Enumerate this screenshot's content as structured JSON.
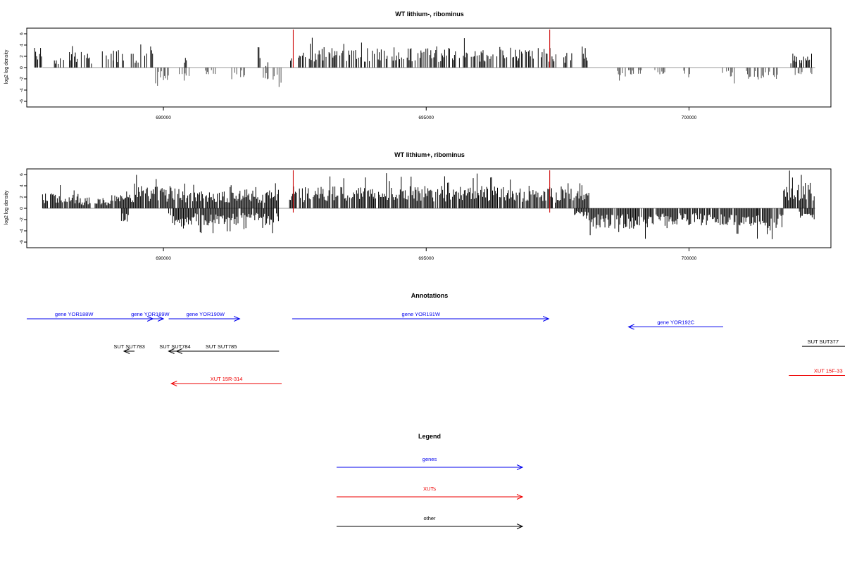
{
  "chart_data": [
    {
      "type": "bar",
      "title": "WT lithium-, ribominus",
      "ylabel": "log2 log density",
      "xlabel": "",
      "xlim": [
        687400,
        702700
      ],
      "ylim": [
        -7,
        7
      ],
      "x_ticks": [
        690000,
        695000,
        700000
      ],
      "x_tick_labels": [
        "690000",
        "695000",
        "700000"
      ],
      "y_ticks": [
        -6,
        -4,
        -2,
        0,
        2,
        4,
        6
      ],
      "y_tick_labels": [
        "-6",
        "-4",
        "-2",
        "0",
        "2",
        "4",
        "6"
      ],
      "baseline": {
        "x": [
          687700,
          702400
        ],
        "y": 0
      },
      "highlight_lines": [
        692470,
        697350
      ],
      "highlight_color": "#cc0000",
      "bar_color": "#000000",
      "neg_bar_color": "#555555",
      "coverage": {
        "positive": [
          [
            687550,
            687750,
            3.0
          ],
          [
            687850,
            688100,
            1.5
          ],
          [
            688100,
            688250,
            1.8
          ],
          [
            688250,
            688450,
            2.3
          ],
          [
            688500,
            688650,
            1.8
          ],
          [
            688800,
            689050,
            2.6
          ],
          [
            689050,
            689250,
            2.5
          ],
          [
            689350,
            689550,
            2.4
          ],
          [
            689550,
            689820,
            3.4
          ],
          [
            690400,
            690450,
            1.8
          ],
          [
            691800,
            691850,
            3.3
          ],
          [
            691950,
            692000,
            0.8
          ],
          [
            692050,
            692100,
            1.6
          ],
          [
            692400,
            692450,
            1.0
          ],
          [
            692550,
            692700,
            2.4
          ],
          [
            692700,
            694400,
            2.9
          ],
          [
            694400,
            694600,
            2.7
          ],
          [
            694600,
            696100,
            2.8
          ],
          [
            696100,
            697000,
            3.0
          ],
          [
            697000,
            697500,
            2.8
          ],
          [
            697600,
            697800,
            2.4
          ],
          [
            697950,
            698080,
            3.0
          ]
        ],
        "negative": [
          [
            689850,
            690200,
            -1.8
          ],
          [
            690300,
            690500,
            -1.5
          ],
          [
            690800,
            691000,
            -1.0
          ],
          [
            691300,
            691550,
            -1.4
          ],
          [
            691900,
            692250,
            -2.2
          ],
          [
            698600,
            698800,
            -1.4
          ],
          [
            698850,
            699100,
            -1.0
          ],
          [
            699350,
            699550,
            -1.0
          ],
          [
            699900,
            700100,
            -1.4
          ],
          [
            700600,
            700900,
            -1.5
          ],
          [
            701000,
            701400,
            -1.7
          ],
          [
            701400,
            701700,
            -1.6
          ],
          [
            702000,
            702200,
            -1.3
          ],
          [
            702300,
            702400,
            -1.3
          ]
        ],
        "tail_positive": [
          [
            701900,
            702400,
            2.0
          ]
        ]
      }
    },
    {
      "type": "bar",
      "title": "WT lithium+, ribominus",
      "ylabel": "log2 log density",
      "xlabel": "",
      "xlim": [
        687400,
        702700
      ],
      "ylim": [
        -7,
        7
      ],
      "x_ticks": [
        690000,
        695000,
        700000
      ],
      "x_tick_labels": [
        "690000",
        "695000",
        "700000"
      ],
      "y_ticks": [
        -6,
        -4,
        -2,
        0,
        2,
        4,
        6
      ],
      "y_tick_labels": [
        "-6",
        "-4",
        "-2",
        "0",
        "2",
        "4",
        "6"
      ],
      "baseline": {
        "x": [
          687700,
          702400
        ],
        "y": 0
      },
      "highlight_lines": [
        692470,
        697350
      ],
      "highlight_color": "#cc0000",
      "bar_color": "#000000",
      "neg_bar_color": "#000000",
      "coverage": {
        "positive": [
          [
            687700,
            688400,
            2.2
          ],
          [
            688400,
            689000,
            1.6
          ],
          [
            689000,
            689450,
            2.0
          ],
          [
            689450,
            690350,
            3.2
          ],
          [
            690350,
            691100,
            2.4
          ],
          [
            691100,
            692200,
            2.7
          ],
          [
            692400,
            694000,
            3.1
          ],
          [
            694000,
            696000,
            3.3
          ],
          [
            696000,
            697400,
            3.2
          ],
          [
            697400,
            698100,
            2.9
          ],
          [
            701800,
            702400,
            3.8
          ]
        ],
        "negative": [
          [
            689200,
            689350,
            -2.0
          ],
          [
            690100,
            691100,
            -2.6
          ],
          [
            691100,
            692200,
            -2.4
          ],
          [
            697800,
            698100,
            -1.2
          ],
          [
            698100,
            699300,
            -2.9
          ],
          [
            699300,
            701300,
            -2.5
          ],
          [
            701300,
            701800,
            -2.9
          ],
          [
            702100,
            702400,
            -1.6
          ]
        ]
      }
    }
  ],
  "annotations": {
    "title": "Annotations",
    "features": [
      {
        "label": "gene YOR188W",
        "type": "gene",
        "start": 687400,
        "end": 689800,
        "row": 0,
        "dir": "+",
        "label_x": 688300
      },
      {
        "label": "gene YOR189W",
        "type": "gene",
        "start": 689550,
        "end": 690000,
        "row": 0,
        "dir": "+",
        "label_x": 689750
      },
      {
        "label": "gene YOR190W",
        "type": "gene",
        "start": 690100,
        "end": 691450,
        "row": 0,
        "dir": "+",
        "label_x": 690800
      },
      {
        "label": "gene YOR191W",
        "type": "gene",
        "start": 692450,
        "end": 697330,
        "row": 0,
        "dir": "+",
        "label_x": 694900
      },
      {
        "label": "gene YOR192C",
        "type": "gene",
        "start": 698850,
        "end": 700650,
        "row": 0.25,
        "dir": "-",
        "label_x": 699750
      },
      {
        "label": "SUT SUT783",
        "type": "other",
        "start": 689250,
        "end": 689450,
        "row": 1,
        "dir": "-",
        "label_x": 689350
      },
      {
        "label": "SUT SUT784",
        "type": "other",
        "start": 690100,
        "end": 690350,
        "row": 1,
        "dir": "-",
        "label_x": 690220
      },
      {
        "label": "SUT SUT785",
        "type": "other",
        "start": 690250,
        "end": 692200,
        "row": 1,
        "dir": "-",
        "label_x": 691100
      },
      {
        "label": "SUT SUT377",
        "type": "other",
        "start": 702150,
        "end": 703500,
        "row": 0.85,
        "dir": "+",
        "label_x": 702550
      },
      {
        "label": "XUT 15R-314",
        "type": "xut",
        "start": 690150,
        "end": 692250,
        "row": 2,
        "dir": "-",
        "label_x": 691200
      },
      {
        "label": "XUT 15F-33",
        "type": "xut",
        "start": 701900,
        "end": 703500,
        "row": 1.75,
        "dir": "+",
        "label_x": 702650
      }
    ]
  },
  "legend": {
    "title": "Legend",
    "items": [
      {
        "label": "genes",
        "type": "gene"
      },
      {
        "label": "XUTs",
        "type": "xut"
      },
      {
        "label": "other",
        "type": "other"
      }
    ]
  },
  "colors": {
    "gene": "#0000ee",
    "xut": "#ee0000",
    "other": "#000000"
  }
}
